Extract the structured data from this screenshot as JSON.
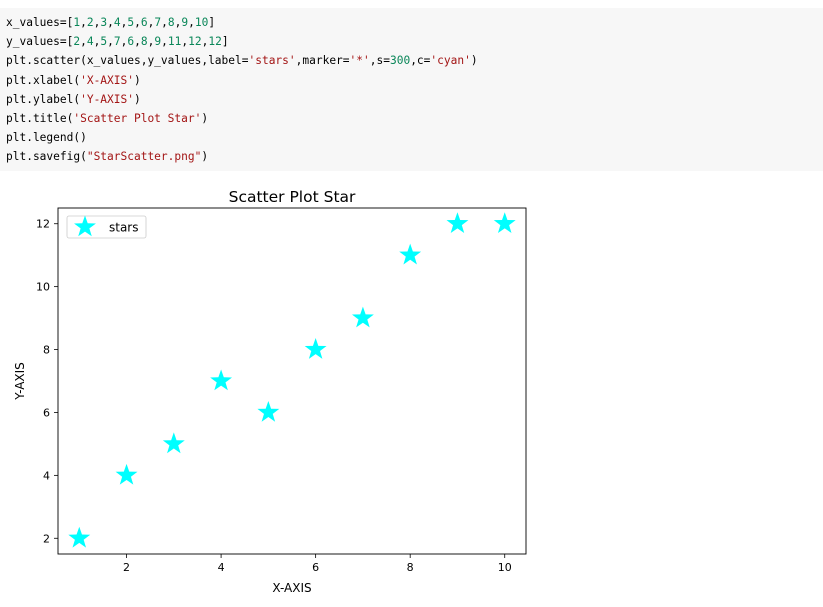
{
  "code_cell": {
    "lines": [
      "x_values=[1,2,3,4,5,6,7,8,9,10]",
      "y_values=[2,4,5,7,6,8,9,11,12,12]",
      "plt.scatter(x_values,y_values,label='stars',marker='*',s=300,c='cyan')",
      "plt.xlabel('X-AXIS')",
      "plt.ylabel('Y-AXIS')",
      "plt.title('Scatter Plot Star')",
      "plt.legend()",
      "plt.savefig(\"StarScatter.png\")"
    ]
  },
  "chart_data": {
    "type": "scatter",
    "title": "Scatter Plot Star",
    "xlabel": "X-AXIS",
    "ylabel": "Y-AXIS",
    "xlim": [
      0.55,
      10.45
    ],
    "ylim": [
      1.5,
      12.5
    ],
    "xticks": [
      2,
      4,
      6,
      8,
      10
    ],
    "yticks": [
      2,
      4,
      6,
      8,
      10,
      12
    ],
    "marker": "star",
    "color": "#00ffff",
    "grid": false,
    "legend_position": "top-left",
    "series": [
      {
        "name": "stars",
        "x": [
          1,
          2,
          3,
          4,
          5,
          6,
          7,
          8,
          9,
          10
        ],
        "y": [
          2,
          4,
          5,
          7,
          6,
          8,
          9,
          11,
          12,
          12
        ]
      }
    ]
  }
}
